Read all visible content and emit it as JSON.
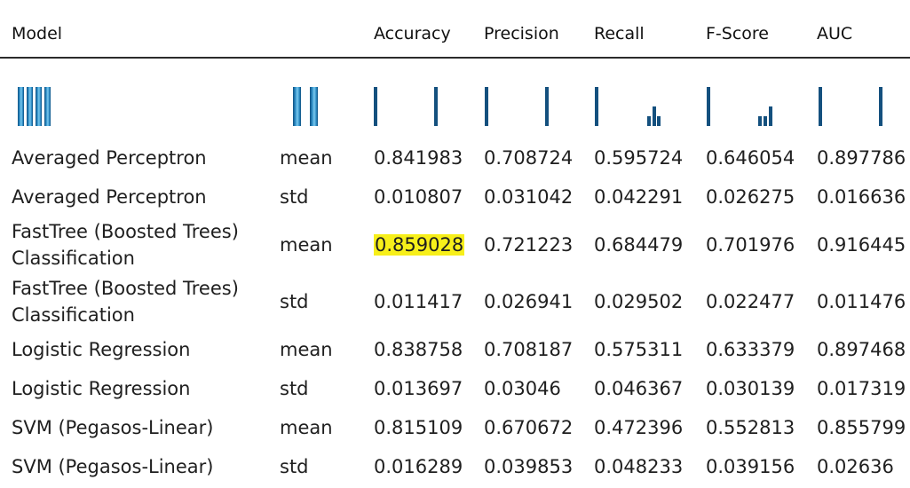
{
  "table": {
    "headers": {
      "model": "Model",
      "accuracy": "Accuracy",
      "precision": "Precision",
      "recall": "Recall",
      "fscore": "F-Score",
      "auc": "AUC"
    },
    "colors": {
      "sparkbar_dark": "#14507e",
      "highlight": "#f7ef1a"
    },
    "highlighted_cell": {
      "row": 2,
      "column": "accuracy"
    },
    "rows": [
      {
        "model": "Averaged Perceptron",
        "stat": "mean",
        "accuracy": "0.841983",
        "precision": "0.708724",
        "recall": "0.595724",
        "fscore": "0.646054",
        "auc": "0.897786"
      },
      {
        "model": "Averaged Perceptron",
        "stat": "std",
        "accuracy": "0.010807",
        "precision": "0.031042",
        "recall": "0.042291",
        "fscore": "0.026275",
        "auc": "0.016636"
      },
      {
        "model": "FastTree (Boosted Trees) Classification",
        "stat": "mean",
        "accuracy": "0.859028",
        "precision": "0.721223",
        "recall": "0.684479",
        "fscore": "0.701976",
        "auc": "0.916445"
      },
      {
        "model": "FastTree (Boosted Trees) Classification",
        "stat": "std",
        "accuracy": "0.011417",
        "precision": "0.026941",
        "recall": "0.029502",
        "fscore": "0.022477",
        "auc": "0.011476"
      },
      {
        "model": "Logistic Regression",
        "stat": "mean",
        "accuracy": "0.838758",
        "precision": "0.708187",
        "recall": "0.575311",
        "fscore": "0.633379",
        "auc": "0.897468"
      },
      {
        "model": "Logistic Regression",
        "stat": "std",
        "accuracy": "0.013697",
        "precision": "0.03046",
        "recall": "0.046367",
        "fscore": "0.030139",
        "auc": "0.017319"
      },
      {
        "model": "SVM (Pegasos-Linear)",
        "stat": "mean",
        "accuracy": "0.815109",
        "precision": "0.670672",
        "recall": "0.472396",
        "fscore": "0.552813",
        "auc": "0.855799"
      },
      {
        "model": "SVM (Pegasos-Linear)",
        "stat": "std",
        "accuracy": "0.016289",
        "precision": "0.039853",
        "recall": "0.048233",
        "fscore": "0.039156",
        "auc": "0.02636"
      }
    ]
  },
  "sparklines": {
    "model": {
      "style": "fat",
      "counts": [
        2,
        2,
        2,
        2
      ]
    },
    "stat": {
      "style": "fat",
      "counts": [
        4,
        4
      ]
    },
    "accuracy": {
      "style": "thin",
      "counts": [
        4,
        0,
        0,
        0,
        0,
        0,
        0,
        4
      ]
    },
    "precision": {
      "style": "thin",
      "counts": [
        4,
        0,
        0,
        0,
        0,
        0,
        0,
        4
      ]
    },
    "recall": {
      "style": "thin",
      "counts": [
        4,
        0,
        0,
        0,
        0,
        0,
        0,
        0,
        0,
        0,
        0,
        1,
        2,
        1
      ]
    },
    "fscore": {
      "style": "thin",
      "counts": [
        4,
        0,
        0,
        0,
        0,
        0,
        0,
        0,
        0,
        0,
        1,
        1,
        2
      ]
    },
    "auc": {
      "style": "thin",
      "counts": [
        4,
        0,
        0,
        0,
        0,
        0,
        0,
        4
      ]
    }
  }
}
